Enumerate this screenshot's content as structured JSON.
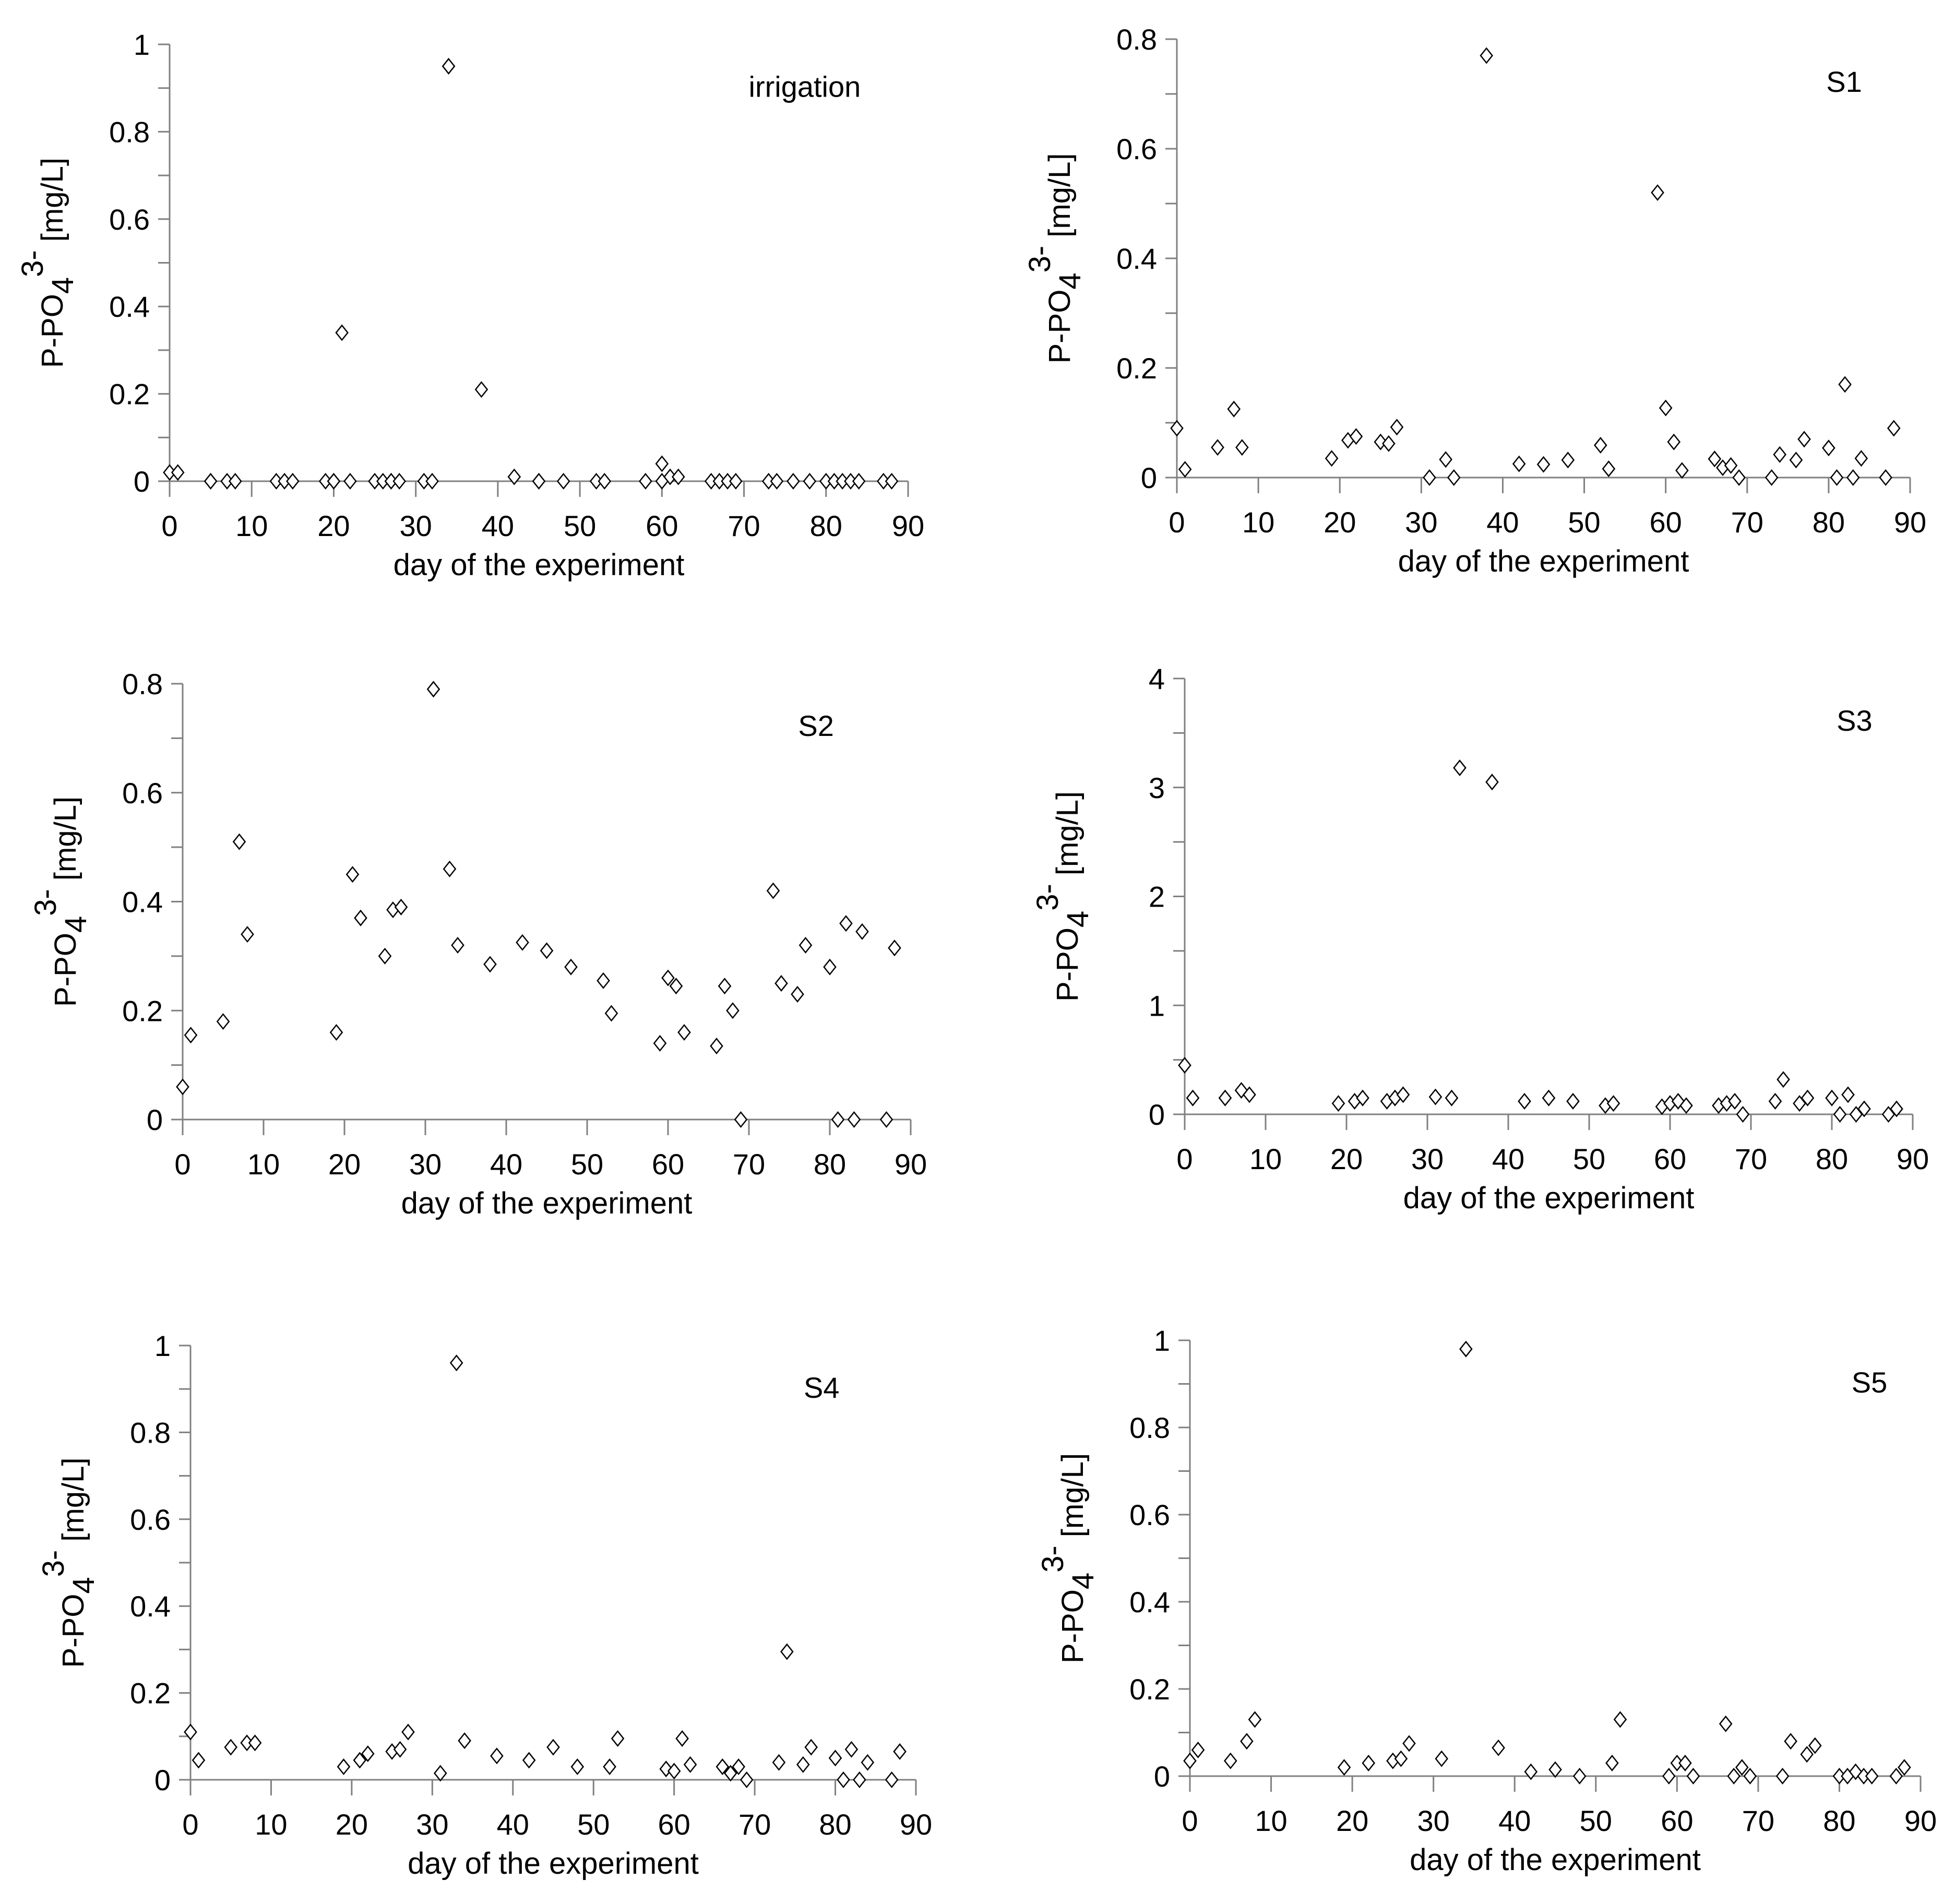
{
  "figure": {
    "marker": "diamond-open",
    "colors": {
      "axis": "#808080",
      "marker": "#000000",
      "background": "#ffffff"
    }
  },
  "chart_data": [
    {
      "type": "scatter",
      "panel": "irrigation",
      "title": "irrigation",
      "xlabel": "day of the experiment",
      "ylabel": "P-PO4 3- [mg/L]",
      "ylabel_parts": {
        "prefix": "P-PO",
        "sub": "4",
        "sup": "3-",
        "suffix": " [mg/L]"
      },
      "xlim": [
        0,
        90
      ],
      "ylim": [
        0,
        1
      ],
      "xticks": [
        0,
        10,
        20,
        30,
        40,
        50,
        60,
        70,
        80,
        90
      ],
      "xtick_labels": [
        "0",
        "10",
        "20",
        "30",
        "40",
        "50",
        "60",
        "70",
        "80",
        "90"
      ],
      "yticks": [
        0,
        0.2,
        0.4,
        0.6,
        0.8,
        1
      ],
      "ytick_labels": [
        "0",
        "0.2",
        "0.4",
        "0.6",
        "0.8",
        "1"
      ],
      "grid": false,
      "x": [
        0,
        1,
        5,
        5,
        7,
        8,
        13,
        14,
        15,
        19,
        20,
        20,
        21,
        22,
        25,
        26,
        27,
        27,
        28,
        31,
        32,
        34,
        34,
        38,
        42,
        45,
        45,
        48,
        52,
        53,
        58,
        60,
        60,
        61,
        62,
        66,
        67,
        68,
        69,
        73,
        74,
        76,
        78,
        80,
        81,
        82,
        83,
        84,
        87,
        88
      ],
      "y": [
        0.02,
        0.02,
        0.0,
        0.0,
        0.0,
        0.0,
        0.0,
        0.0,
        0.0,
        0.0,
        0.0,
        0.0,
        0.34,
        0.0,
        0.0,
        0.0,
        0.0,
        0.0,
        0.0,
        0.0,
        0.0,
        0.95,
        0.95,
        0.21,
        0.01,
        0.0,
        0.0,
        0.0,
        0.0,
        0.0,
        0.0,
        0.04,
        0.0,
        0.01,
        0.01,
        0.0,
        0.0,
        0.0,
        0.0,
        0.0,
        0.0,
        0.0,
        0.0,
        0.0,
        0.0,
        0.0,
        0.0,
        0.0,
        0.0,
        0.0
      ]
    },
    {
      "type": "scatter",
      "panel": "S1",
      "title": "S1",
      "xlabel": "day of the experiment",
      "ylabel": "P-PO4 3- [mg/L]",
      "ylabel_parts": {
        "prefix": "P-PO",
        "sub": "4",
        "sup": "3-",
        "suffix": " [mg/L]"
      },
      "xlim": [
        0,
        90
      ],
      "ylim": [
        0,
        0.8
      ],
      "xticks": [
        0,
        10,
        20,
        30,
        40,
        50,
        60,
        70,
        80,
        90
      ],
      "xtick_labels": [
        "0",
        "10",
        "20",
        "30",
        "40",
        "50",
        "60",
        "70",
        "80",
        "90"
      ],
      "yticks": [
        0,
        0.2,
        0.4,
        0.6,
        0.8
      ],
      "ytick_labels": [
        "0",
        "0.2",
        "0.4",
        "0.6",
        "0.8"
      ],
      "grid": false,
      "x": [
        0,
        1,
        5,
        7,
        8,
        19,
        21,
        22,
        25,
        26,
        27,
        31,
        33,
        34,
        38,
        42,
        45,
        48,
        52,
        53,
        59,
        60,
        61,
        62,
        66,
        67,
        68,
        69,
        73,
        74,
        76,
        77,
        80,
        81,
        82,
        83,
        84,
        87,
        88
      ],
      "y": [
        0.09,
        0.015,
        0.055,
        0.125,
        0.055,
        0.035,
        0.068,
        0.075,
        0.065,
        0.062,
        0.092,
        0.0,
        0.033,
        0.0,
        0.77,
        0.025,
        0.024,
        0.032,
        0.059,
        0.016,
        0.52,
        0.127,
        0.065,
        0.013,
        0.034,
        0.018,
        0.022,
        0.0,
        0.0,
        0.042,
        0.032,
        0.07,
        0.054,
        0.0,
        0.17,
        0.0,
        0.035,
        0.0,
        0.09
      ]
    },
    {
      "type": "scatter",
      "panel": "S2",
      "title": "S2",
      "xlabel": "day of the experiment",
      "ylabel": "P-PO4 3- [mg/L]",
      "ylabel_parts": {
        "prefix": "P-PO",
        "sub": "4",
        "sup": "3-",
        "suffix": " [mg/L]"
      },
      "xlim": [
        0,
        90
      ],
      "ylim": [
        0,
        0.8
      ],
      "xticks": [
        0,
        10,
        20,
        30,
        40,
        50,
        60,
        70,
        80,
        90
      ],
      "xtick_labels": [
        "0",
        "10",
        "20",
        "30",
        "40",
        "50",
        "60",
        "70",
        "80",
        "90"
      ],
      "yticks": [
        0,
        0.2,
        0.4,
        0.6,
        0.8
      ],
      "ytick_labels": [
        "0",
        "0.2",
        "0.4",
        "0.6",
        "0.8"
      ],
      "grid": false,
      "x": [
        0,
        1,
        5,
        7,
        8,
        19,
        21,
        22,
        25,
        26,
        27,
        31,
        33,
        34,
        38,
        42,
        45,
        48,
        52,
        53,
        59,
        60,
        61,
        62,
        66,
        67,
        68,
        69,
        73,
        74,
        76,
        77,
        80,
        81,
        82,
        83,
        84,
        87,
        88
      ],
      "y": [
        0.06,
        0.155,
        0.18,
        0.51,
        0.34,
        0.16,
        0.45,
        0.37,
        0.3,
        0.385,
        0.39,
        0.79,
        0.46,
        0.32,
        0.285,
        0.325,
        0.31,
        0.28,
        0.255,
        0.195,
        0.14,
        0.26,
        0.245,
        0.16,
        0.135,
        0.245,
        0.2,
        0.0,
        0.42,
        0.25,
        0.23,
        0.32,
        0.28,
        0.0,
        0.36,
        0.0,
        0.345,
        0.0,
        0.315
      ]
    },
    {
      "type": "scatter",
      "panel": "S3",
      "title": "S3",
      "xlabel": "day of the experiment",
      "ylabel": "P-PO4 3- [mg/L]",
      "ylabel_parts": {
        "prefix": "P-PO",
        "sub": "4",
        "sup": "3-",
        "suffix": " [mg/L]"
      },
      "xlim": [
        0,
        90
      ],
      "ylim": [
        0,
        4
      ],
      "xticks": [
        0,
        10,
        20,
        30,
        40,
        50,
        60,
        70,
        80,
        90
      ],
      "xtick_labels": [
        "0",
        "10",
        "20",
        "30",
        "40",
        "50",
        "60",
        "70",
        "80",
        "90"
      ],
      "yticks": [
        0,
        1,
        2,
        3,
        4
      ],
      "ytick_labels": [
        "0",
        "1",
        "2",
        "3",
        "4"
      ],
      "grid": false,
      "x": [
        0,
        1,
        5,
        7,
        8,
        19,
        21,
        22,
        25,
        26,
        27,
        31,
        33,
        34,
        38,
        42,
        45,
        48,
        52,
        53,
        59,
        60,
        61,
        62,
        66,
        67,
        68,
        69,
        73,
        74,
        76,
        77,
        80,
        81,
        82,
        83,
        84,
        87,
        88
      ],
      "y": [
        0.45,
        0.15,
        0.15,
        0.22,
        0.18,
        0.1,
        0.12,
        0.15,
        0.12,
        0.15,
        0.18,
        0.16,
        0.15,
        3.18,
        3.05,
        0.12,
        0.15,
        0.12,
        0.08,
        0.1,
        0.07,
        0.1,
        0.12,
        0.08,
        0.08,
        0.1,
        0.12,
        0.0,
        0.12,
        0.32,
        0.1,
        0.15,
        0.15,
        0.0,
        0.18,
        0.0,
        0.05,
        0.0,
        0.05
      ]
    },
    {
      "type": "scatter",
      "panel": "S4",
      "title": "S4",
      "xlabel": "day of the experiment",
      "ylabel": "P-PO4 3- [mg/L]",
      "ylabel_parts": {
        "prefix": "P-PO",
        "sub": "4",
        "sup": "3-",
        "suffix": " [mg/L]"
      },
      "xlim": [
        0,
        90
      ],
      "ylim": [
        0,
        1
      ],
      "xticks": [
        0,
        10,
        20,
        30,
        40,
        50,
        60,
        70,
        80,
        90
      ],
      "xtick_labels": [
        "0",
        "10",
        "20",
        "30",
        "40",
        "50",
        "60",
        "70",
        "80",
        "90"
      ],
      "yticks": [
        0,
        0.2,
        0.4,
        0.6,
        0.8,
        1
      ],
      "ytick_labels": [
        "0",
        "0.2",
        "0.4",
        "0.6",
        "0.8",
        "1"
      ],
      "grid": false,
      "x": [
        0,
        1,
        5,
        7,
        8,
        19,
        21,
        22,
        25,
        26,
        27,
        31,
        33,
        34,
        38,
        42,
        45,
        48,
        52,
        53,
        59,
        60,
        61,
        62,
        66,
        67,
        68,
        69,
        73,
        74,
        76,
        77,
        80,
        81,
        82,
        83,
        84,
        87,
        88
      ],
      "y": [
        0.11,
        0.045,
        0.075,
        0.085,
        0.085,
        0.03,
        0.045,
        0.06,
        0.065,
        0.07,
        0.11,
        0.015,
        0.96,
        0.09,
        0.055,
        0.045,
        0.075,
        0.03,
        0.03,
        0.095,
        0.025,
        0.02,
        0.095,
        0.035,
        0.03,
        0.015,
        0.03,
        0.0,
        0.04,
        0.295,
        0.035,
        0.075,
        0.05,
        0.0,
        0.07,
        0.0,
        0.04,
        0.0,
        0.065
      ]
    },
    {
      "type": "scatter",
      "panel": "S5",
      "title": "S5",
      "xlabel": "day of the experiment",
      "ylabel": "P-PO4 3- [mg/L]",
      "ylabel_parts": {
        "prefix": "P-PO",
        "sub": "4",
        "sup": "3-",
        "suffix": " [mg/L]"
      },
      "xlim": [
        0,
        90
      ],
      "ylim": [
        0,
        1
      ],
      "xticks": [
        0,
        10,
        20,
        30,
        40,
        50,
        60,
        70,
        80,
        90
      ],
      "xtick_labels": [
        "0",
        "10",
        "20",
        "30",
        "40",
        "50",
        "60",
        "70",
        "80",
        "90"
      ],
      "yticks": [
        0,
        0.2,
        0.4,
        0.6,
        0.8,
        1
      ],
      "ytick_labels": [
        "0",
        "0.2",
        "0.4",
        "0.6",
        "0.8",
        "1"
      ],
      "grid": false,
      "x": [
        0,
        1,
        5,
        7,
        8,
        19,
        22,
        25,
        26,
        27,
        31,
        34,
        38,
        42,
        45,
        48,
        52,
        53,
        59,
        60,
        61,
        62,
        66,
        67,
        68,
        69,
        73,
        74,
        76,
        77,
        80,
        81,
        82,
        83,
        84,
        87,
        88
      ],
      "y": [
        0.035,
        0.06,
        0.035,
        0.08,
        0.13,
        0.02,
        0.03,
        0.035,
        0.04,
        0.075,
        0.04,
        0.98,
        0.065,
        0.01,
        0.015,
        0.0,
        0.03,
        0.13,
        0.0,
        0.03,
        0.03,
        0.0,
        0.12,
        0.0,
        0.02,
        0.0,
        0.0,
        0.08,
        0.05,
        0.07,
        0.0,
        0.0,
        0.01,
        0.0,
        0.0,
        0.0,
        0.02
      ]
    }
  ]
}
